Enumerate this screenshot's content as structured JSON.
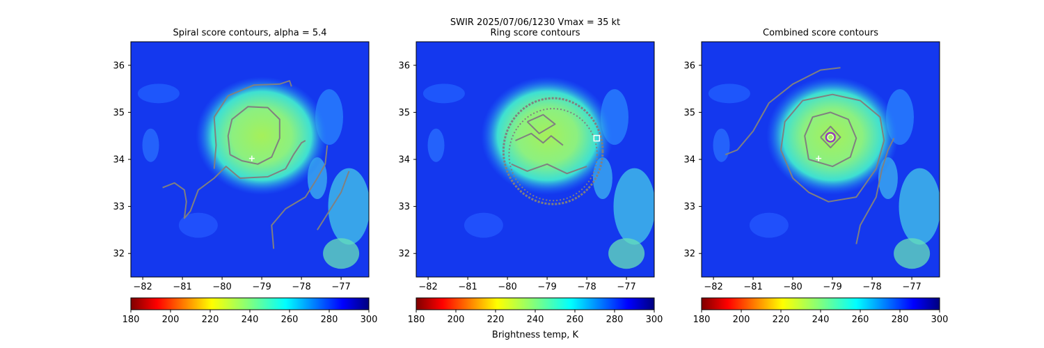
{
  "figure": {
    "suptitle_line1": "SWIR  2025/07/06/1230    Vmax = 35 kt",
    "colorbar_label": "Brightness temp, K"
  },
  "colors": {
    "contour": "#808080",
    "center_marker": "#ffffff",
    "combined_center_marker": "#9b1fd1"
  },
  "chart_data": [
    {
      "type": "heatmap",
      "title": "Spiral score contours, alpha =  5.4",
      "xlim": [
        -82.3,
        -76.3
      ],
      "ylim": [
        31.5,
        36.5
      ],
      "xticks": [
        -82,
        -81,
        -80,
        -79,
        -78,
        -77
      ],
      "yticks": [
        32,
        33,
        34,
        35,
        36
      ],
      "colormap": "jet_r",
      "colorbar": {
        "vmin": 180,
        "vmax": 300,
        "ticks": [
          180,
          200,
          220,
          240,
          260,
          280,
          300
        ]
      },
      "markers": [
        {
          "kind": "plus",
          "lon": -79.25,
          "lat": 34.02
        }
      ],
      "contours": [
        [
          [
            -79.8,
            34.1
          ],
          [
            -79.85,
            34.5
          ],
          [
            -79.75,
            34.85
          ],
          [
            -79.35,
            35.12
          ],
          [
            -78.85,
            35.1
          ],
          [
            -78.55,
            34.85
          ],
          [
            -78.55,
            34.45
          ],
          [
            -78.75,
            34.05
          ],
          [
            -79.1,
            33.9
          ],
          [
            -79.5,
            33.97
          ],
          [
            -79.8,
            34.1
          ]
        ],
        [
          [
            -80.2,
            33.8
          ],
          [
            -80.15,
            34.3
          ],
          [
            -80.2,
            34.9
          ],
          [
            -79.85,
            35.35
          ],
          [
            -79.2,
            35.58
          ],
          [
            -78.55,
            35.6
          ],
          [
            -78.3,
            35.67
          ],
          [
            -78.25,
            35.55
          ]
        ],
        [
          [
            -81.5,
            33.4
          ],
          [
            -81.2,
            33.5
          ],
          [
            -80.95,
            33.35
          ],
          [
            -80.9,
            33.1
          ],
          [
            -80.95,
            32.75
          ],
          [
            -80.8,
            32.9
          ],
          [
            -80.6,
            33.35
          ],
          [
            -80.2,
            33.6
          ],
          [
            -79.9,
            33.85
          ],
          [
            -79.55,
            33.6
          ],
          [
            -78.85,
            33.63
          ],
          [
            -78.4,
            33.8
          ],
          [
            -78.2,
            34.1
          ],
          [
            -78.0,
            34.35
          ],
          [
            -77.9,
            34.4
          ]
        ],
        [
          [
            -78.7,
            32.1
          ],
          [
            -78.75,
            32.6
          ],
          [
            -78.4,
            32.95
          ],
          [
            -77.9,
            33.2
          ],
          [
            -77.6,
            33.6
          ],
          [
            -77.4,
            33.9
          ],
          [
            -77.35,
            34.3
          ]
        ],
        [
          [
            -77.6,
            32.5
          ],
          [
            -77.3,
            32.9
          ],
          [
            -77.0,
            33.3
          ],
          [
            -76.8,
            33.75
          ]
        ]
      ]
    },
    {
      "type": "heatmap",
      "title": "Ring score contours",
      "xlim": [
        -82.3,
        -76.3
      ],
      "ylim": [
        31.5,
        36.5
      ],
      "xticks": [
        -82,
        -81,
        -80,
        -79,
        -78,
        -77
      ],
      "yticks": [
        32,
        33,
        34,
        35,
        36
      ],
      "colormap": "jet_r",
      "colorbar": {
        "vmin": 180,
        "vmax": 300,
        "ticks": [
          180,
          200,
          220,
          240,
          260,
          280,
          300
        ]
      },
      "markers": [
        {
          "kind": "square",
          "lon": -77.75,
          "lat": 34.45
        }
      ],
      "ring_region": {
        "lon_range": [
          -80.1,
          -77.6
        ],
        "lat_range": [
          33.05,
          35.3
        ]
      },
      "contours": [
        [
          [
            -79.5,
            34.8
          ],
          [
            -79.1,
            34.95
          ],
          [
            -78.8,
            34.75
          ],
          [
            -79.2,
            34.55
          ],
          [
            -79.5,
            34.8
          ]
        ],
        [
          [
            -79.8,
            34.4
          ],
          [
            -79.4,
            34.55
          ],
          [
            -79.1,
            34.35
          ],
          [
            -78.9,
            34.5
          ],
          [
            -78.6,
            34.3
          ]
        ],
        [
          [
            -79.9,
            33.9
          ],
          [
            -79.5,
            33.75
          ],
          [
            -79.0,
            33.9
          ],
          [
            -78.5,
            33.7
          ],
          [
            -78.0,
            33.85
          ]
        ]
      ]
    },
    {
      "type": "heatmap",
      "title": "Combined score contours",
      "xlim": [
        -82.3,
        -76.3
      ],
      "ylim": [
        31.5,
        36.5
      ],
      "xticks": [
        -82,
        -81,
        -80,
        -79,
        -78,
        -77
      ],
      "yticks": [
        32,
        33,
        34,
        35,
        36
      ],
      "colormap": "jet_r",
      "colorbar": {
        "vmin": 180,
        "vmax": 300,
        "ticks": [
          180,
          200,
          220,
          240,
          260,
          280,
          300
        ]
      },
      "markers": [
        {
          "kind": "plus",
          "lon": -79.35,
          "lat": 34.02
        },
        {
          "kind": "circle",
          "lon": -79.05,
          "lat": 34.47
        }
      ],
      "contours": [
        [
          [
            -79.3,
            34.47
          ],
          [
            -79.05,
            34.7
          ],
          [
            -78.8,
            34.47
          ],
          [
            -79.05,
            34.25
          ],
          [
            -79.3,
            34.47
          ]
        ],
        [
          [
            -79.6,
            34.0
          ],
          [
            -79.7,
            34.5
          ],
          [
            -79.5,
            34.9
          ],
          [
            -79.05,
            35.0
          ],
          [
            -78.6,
            34.85
          ],
          [
            -78.4,
            34.45
          ],
          [
            -78.55,
            34.05
          ],
          [
            -79.0,
            33.85
          ],
          [
            -79.6,
            34.0
          ]
        ],
        [
          [
            -80.0,
            33.6
          ],
          [
            -80.3,
            34.2
          ],
          [
            -80.2,
            34.8
          ],
          [
            -79.75,
            35.25
          ],
          [
            -79.0,
            35.38
          ],
          [
            -78.3,
            35.25
          ],
          [
            -77.8,
            34.9
          ],
          [
            -77.7,
            34.4
          ],
          [
            -77.9,
            33.8
          ],
          [
            -78.4,
            33.2
          ],
          [
            -79.1,
            33.1
          ],
          [
            -79.6,
            33.3
          ],
          [
            -80.0,
            33.6
          ]
        ],
        [
          [
            -81.7,
            34.1
          ],
          [
            -81.4,
            34.2
          ],
          [
            -81.0,
            34.6
          ],
          [
            -80.6,
            35.2
          ],
          [
            -80.0,
            35.6
          ],
          [
            -79.3,
            35.9
          ],
          [
            -78.8,
            35.95
          ]
        ],
        [
          [
            -78.4,
            32.2
          ],
          [
            -78.3,
            32.6
          ],
          [
            -77.9,
            33.2
          ],
          [
            -77.75,
            33.8
          ],
          [
            -77.6,
            34.2
          ],
          [
            -77.45,
            34.45
          ]
        ]
      ]
    }
  ]
}
